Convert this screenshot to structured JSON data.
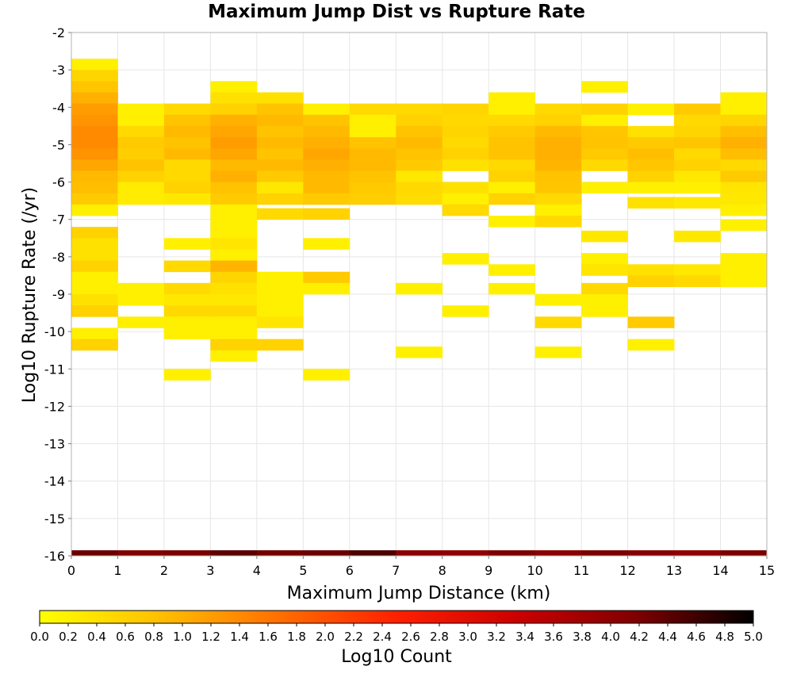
{
  "chart_data": {
    "type": "heatmap",
    "title": "Maximum Jump Dist vs Rupture Rate",
    "xlabel": "Maximum Jump Distance (km)",
    "ylabel": "Log10 Rupture Rate (/yr)",
    "xlim": [
      0,
      15
    ],
    "ylim": [
      -16,
      -2
    ],
    "x_ticks": [
      "0",
      "1",
      "2",
      "3",
      "4",
      "5",
      "6",
      "7",
      "8",
      "9",
      "10",
      "11",
      "12",
      "13",
      "14",
      "15"
    ],
    "y_ticks": [
      "-2",
      "-3",
      "-4",
      "-5",
      "-6",
      "-7",
      "-8",
      "-9",
      "-10",
      "-11",
      "-12",
      "-13",
      "-14",
      "-15",
      "-16"
    ],
    "x_bin_width": 1,
    "y_bin_height": 0.3,
    "grid": true,
    "colorbar": {
      "label": "Log10 Count",
      "range": [
        0,
        5
      ],
      "ticks": [
        "0.0",
        "0.2",
        "0.4",
        "0.6",
        "0.8",
        "1.0",
        "1.2",
        "1.4",
        "1.6",
        "1.8",
        "2.0",
        "2.2",
        "2.4",
        "2.6",
        "2.8",
        "3.0",
        "3.2",
        "3.4",
        "3.6",
        "3.8",
        "4.0",
        "4.2",
        "4.4",
        "4.6",
        "4.8",
        "5.0"
      ],
      "colors": [
        "#ffff00",
        "#ffc000",
        "#ff7000",
        "#ff2000",
        "#cc0000",
        "#800000",
        "#000000"
      ]
    },
    "cells": [
      [
        0.5,
        -2.85,
        0.2
      ],
      [
        0.5,
        -3.15,
        0.55
      ],
      [
        0.5,
        -3.45,
        0.75
      ],
      [
        0.5,
        -3.75,
        1.0
      ],
      [
        0.5,
        -4.05,
        1.2
      ],
      [
        0.5,
        -4.35,
        1.3
      ],
      [
        0.5,
        -4.65,
        1.4
      ],
      [
        0.5,
        -4.95,
        1.4
      ],
      [
        0.5,
        -5.25,
        1.3
      ],
      [
        0.5,
        -5.55,
        1.1
      ],
      [
        0.5,
        -5.85,
        0.9
      ],
      [
        0.5,
        -6.15,
        0.85
      ],
      [
        0.5,
        -6.45,
        0.7
      ],
      [
        0.5,
        -6.75,
        0.2
      ],
      [
        0.5,
        -7.35,
        0.6
      ],
      [
        0.5,
        -7.65,
        0.4
      ],
      [
        0.5,
        -7.95,
        0.4
      ],
      [
        0.5,
        -8.25,
        0.6
      ],
      [
        0.5,
        -8.55,
        0.2
      ],
      [
        0.5,
        -8.85,
        0.2
      ],
      [
        0.5,
        -9.15,
        0.4
      ],
      [
        0.5,
        -9.45,
        0.6
      ],
      [
        0.5,
        -10.05,
        0.2
      ],
      [
        0.5,
        -10.35,
        0.6
      ],
      [
        1.5,
        -4.05,
        0.2
      ],
      [
        1.5,
        -4.35,
        0.2
      ],
      [
        1.5,
        -4.65,
        0.5
      ],
      [
        1.5,
        -4.95,
        0.7
      ],
      [
        1.5,
        -5.25,
        0.65
      ],
      [
        1.5,
        -5.55,
        0.8
      ],
      [
        1.5,
        -5.85,
        0.6
      ],
      [
        1.5,
        -6.15,
        0.25
      ],
      [
        1.5,
        -6.45,
        0.25
      ],
      [
        1.5,
        -8.85,
        0.2
      ],
      [
        1.5,
        -9.15,
        0.2
      ],
      [
        1.5,
        -9.75,
        0.2
      ],
      [
        2.5,
        -4.05,
        0.5
      ],
      [
        2.5,
        -4.35,
        0.8
      ],
      [
        2.5,
        -4.65,
        0.9
      ],
      [
        2.5,
        -4.95,
        0.8
      ],
      [
        2.5,
        -5.25,
        0.9
      ],
      [
        2.5,
        -5.55,
        0.5
      ],
      [
        2.5,
        -5.85,
        0.5
      ],
      [
        2.5,
        -6.15,
        0.6
      ],
      [
        2.5,
        -6.45,
        0.3
      ],
      [
        2.5,
        -7.65,
        0.2
      ],
      [
        2.5,
        -8.25,
        0.5
      ],
      [
        2.5,
        -8.85,
        0.5
      ],
      [
        2.5,
        -9.15,
        0.3
      ],
      [
        2.5,
        -9.45,
        0.5
      ],
      [
        2.5,
        -9.75,
        0.2
      ],
      [
        2.5,
        -10.05,
        0.2
      ],
      [
        2.5,
        -11.15,
        0.2
      ],
      [
        3.5,
        -3.45,
        0.2
      ],
      [
        3.5,
        -3.75,
        0.4
      ],
      [
        3.5,
        -4.05,
        0.6
      ],
      [
        3.5,
        -4.35,
        1.0
      ],
      [
        3.5,
        -4.65,
        1.1
      ],
      [
        3.5,
        -4.95,
        1.2
      ],
      [
        3.5,
        -5.25,
        1.1
      ],
      [
        3.5,
        -5.55,
        0.9
      ],
      [
        3.5,
        -5.85,
        1.0
      ],
      [
        3.5,
        -6.15,
        0.8
      ],
      [
        3.5,
        -6.45,
        0.7
      ],
      [
        3.5,
        -6.75,
        0.2
      ],
      [
        3.5,
        -7.05,
        0.2
      ],
      [
        3.5,
        -7.35,
        0.2
      ],
      [
        3.5,
        -7.65,
        0.35
      ],
      [
        3.5,
        -7.95,
        0.2
      ],
      [
        3.5,
        -8.25,
        0.95
      ],
      [
        3.5,
        -8.55,
        0.55
      ],
      [
        3.5,
        -8.85,
        0.4
      ],
      [
        3.5,
        -9.15,
        0.3
      ],
      [
        3.5,
        -9.45,
        0.5
      ],
      [
        3.5,
        -9.75,
        0.2
      ],
      [
        3.5,
        -10.05,
        0.2
      ],
      [
        3.5,
        -10.35,
        0.6
      ],
      [
        3.5,
        -10.65,
        0.2
      ],
      [
        4.5,
        -3.75,
        0.4
      ],
      [
        4.5,
        -4.05,
        0.8
      ],
      [
        4.5,
        -4.35,
        0.9
      ],
      [
        4.5,
        -4.65,
        0.8
      ],
      [
        4.5,
        -4.95,
        0.9
      ],
      [
        4.5,
        -5.25,
        0.8
      ],
      [
        4.5,
        -5.55,
        0.9
      ],
      [
        4.5,
        -5.85,
        0.7
      ],
      [
        4.5,
        -6.15,
        0.3
      ],
      [
        4.5,
        -6.45,
        0.6
      ],
      [
        4.5,
        -6.85,
        0.5
      ],
      [
        4.5,
        -8.55,
        0.2
      ],
      [
        4.5,
        -8.85,
        0.2
      ],
      [
        4.5,
        -9.15,
        0.2
      ],
      [
        4.5,
        -9.45,
        0.2
      ],
      [
        4.5,
        -9.75,
        0.35
      ],
      [
        4.5,
        -10.35,
        0.6
      ],
      [
        5.5,
        -4.05,
        0.2
      ],
      [
        5.5,
        -4.35,
        0.8
      ],
      [
        5.5,
        -4.65,
        0.9
      ],
      [
        5.5,
        -4.95,
        1.0
      ],
      [
        5.5,
        -5.25,
        1.1
      ],
      [
        5.5,
        -5.55,
        1.0
      ],
      [
        5.5,
        -5.85,
        0.9
      ],
      [
        5.5,
        -6.15,
        0.9
      ],
      [
        5.5,
        -6.45,
        0.7
      ],
      [
        5.5,
        -6.85,
        0.6
      ],
      [
        5.5,
        -7.65,
        0.2
      ],
      [
        5.5,
        -8.55,
        0.7
      ],
      [
        5.5,
        -8.85,
        0.2
      ],
      [
        5.5,
        -11.15,
        0.2
      ],
      [
        6.5,
        -4.05,
        0.5
      ],
      [
        6.5,
        -4.35,
        0.2
      ],
      [
        6.5,
        -4.65,
        0.2
      ],
      [
        6.5,
        -4.95,
        0.8
      ],
      [
        6.5,
        -5.25,
        0.9
      ],
      [
        6.5,
        -5.55,
        0.9
      ],
      [
        6.5,
        -5.85,
        0.8
      ],
      [
        6.5,
        -6.15,
        0.7
      ],
      [
        6.5,
        -6.45,
        0.65
      ],
      [
        7.5,
        -4.05,
        0.5
      ],
      [
        7.5,
        -4.35,
        0.6
      ],
      [
        7.5,
        -4.65,
        0.8
      ],
      [
        7.5,
        -4.95,
        0.9
      ],
      [
        7.5,
        -5.25,
        0.8
      ],
      [
        7.5,
        -5.55,
        0.7
      ],
      [
        7.5,
        -5.85,
        0.3
      ],
      [
        7.5,
        -6.15,
        0.5
      ],
      [
        7.5,
        -6.45,
        0.45
      ],
      [
        7.5,
        -8.85,
        0.2
      ],
      [
        7.5,
        -10.55,
        0.2
      ],
      [
        8.5,
        -4.05,
        0.55
      ],
      [
        8.5,
        -4.35,
        0.5
      ],
      [
        8.5,
        -4.65,
        0.55
      ],
      [
        8.5,
        -4.95,
        0.5
      ],
      [
        8.5,
        -5.25,
        0.6
      ],
      [
        8.5,
        -5.55,
        0.4
      ],
      [
        8.5,
        -6.15,
        0.4
      ],
      [
        8.5,
        -6.45,
        0.2
      ],
      [
        8.5,
        -6.75,
        0.5
      ],
      [
        8.5,
        -8.05,
        0.2
      ],
      [
        8.5,
        -9.45,
        0.2
      ],
      [
        9.5,
        -3.75,
        0.2
      ],
      [
        9.5,
        -4.05,
        0.2
      ],
      [
        9.5,
        -4.35,
        0.5
      ],
      [
        9.5,
        -4.65,
        0.7
      ],
      [
        9.5,
        -4.95,
        0.8
      ],
      [
        9.5,
        -5.25,
        0.8
      ],
      [
        9.5,
        -5.55,
        0.5
      ],
      [
        9.5,
        -5.85,
        0.6
      ],
      [
        9.5,
        -6.15,
        0.2
      ],
      [
        9.5,
        -6.45,
        0.6
      ],
      [
        9.5,
        -7.05,
        0.2
      ],
      [
        9.5,
        -8.35,
        0.2
      ],
      [
        9.5,
        -8.85,
        0.2
      ],
      [
        10.5,
        -4.05,
        0.5
      ],
      [
        10.5,
        -4.35,
        0.6
      ],
      [
        10.5,
        -4.65,
        0.9
      ],
      [
        10.5,
        -4.95,
        1.0
      ],
      [
        10.5,
        -5.25,
        1.0
      ],
      [
        10.5,
        -5.55,
        0.95
      ],
      [
        10.5,
        -5.85,
        0.8
      ],
      [
        10.5,
        -6.15,
        0.75
      ],
      [
        10.5,
        -6.45,
        0.5
      ],
      [
        10.5,
        -6.75,
        0.2
      ],
      [
        10.5,
        -7.05,
        0.5
      ],
      [
        10.5,
        -9.15,
        0.2
      ],
      [
        10.5,
        -9.75,
        0.5
      ],
      [
        10.5,
        -10.55,
        0.2
      ],
      [
        11.5,
        -3.45,
        0.2
      ],
      [
        11.5,
        -4.05,
        0.6
      ],
      [
        11.5,
        -4.35,
        0.2
      ],
      [
        11.5,
        -4.65,
        0.75
      ],
      [
        11.5,
        -4.95,
        0.8
      ],
      [
        11.5,
        -5.25,
        0.7
      ],
      [
        11.5,
        -5.55,
        0.5
      ],
      [
        11.5,
        -6.15,
        0.2
      ],
      [
        11.5,
        -7.45,
        0.3
      ],
      [
        11.5,
        -8.05,
        0.2
      ],
      [
        11.5,
        -8.35,
        0.35
      ],
      [
        11.5,
        -8.85,
        0.5
      ],
      [
        11.5,
        -9.15,
        0.2
      ],
      [
        11.5,
        -9.45,
        0.2
      ],
      [
        12.5,
        -4.05,
        0.2
      ],
      [
        12.5,
        -4.65,
        0.4
      ],
      [
        12.5,
        -4.95,
        0.7
      ],
      [
        12.5,
        -5.25,
        0.85
      ],
      [
        12.5,
        -5.55,
        0.75
      ],
      [
        12.5,
        -5.85,
        0.6
      ],
      [
        12.5,
        -6.15,
        0.2
      ],
      [
        12.5,
        -6.55,
        0.4
      ],
      [
        12.5,
        -8.35,
        0.4
      ],
      [
        12.5,
        -8.65,
        0.6
      ],
      [
        12.5,
        -9.75,
        0.7
      ],
      [
        12.5,
        -10.35,
        0.2
      ],
      [
        13.5,
        -4.05,
        0.7
      ],
      [
        13.5,
        -4.35,
        0.5
      ],
      [
        13.5,
        -4.65,
        0.55
      ],
      [
        13.5,
        -4.95,
        0.75
      ],
      [
        13.5,
        -5.25,
        0.5
      ],
      [
        13.5,
        -5.55,
        0.6
      ],
      [
        13.5,
        -5.85,
        0.3
      ],
      [
        13.5,
        -6.15,
        0.2
      ],
      [
        13.5,
        -6.55,
        0.3
      ],
      [
        13.5,
        -7.45,
        0.3
      ],
      [
        13.5,
        -8.35,
        0.3
      ],
      [
        13.5,
        -8.65,
        0.5
      ],
      [
        14.5,
        -3.75,
        0.2
      ],
      [
        14.5,
        -4.05,
        0.2
      ],
      [
        14.5,
        -4.35,
        0.55
      ],
      [
        14.5,
        -4.65,
        0.85
      ],
      [
        14.5,
        -4.95,
        1.0
      ],
      [
        14.5,
        -5.25,
        0.85
      ],
      [
        14.5,
        -5.55,
        0.5
      ],
      [
        14.5,
        -5.85,
        0.7
      ],
      [
        14.5,
        -6.15,
        0.35
      ],
      [
        14.5,
        -6.45,
        0.3
      ],
      [
        14.5,
        -6.75,
        0.2
      ],
      [
        14.5,
        -7.15,
        0.2
      ],
      [
        14.5,
        -8.05,
        0.2
      ],
      [
        14.5,
        -8.35,
        0.2
      ],
      [
        14.5,
        -8.65,
        0.2
      ]
    ],
    "bottom_row": {
      "y": -16,
      "log10_counts": [
        4.3,
        4.15,
        4.2,
        4.4,
        4.25,
        4.3,
        4.5,
        4.05,
        4.0,
        4.2,
        4.05,
        4.2,
        4.1,
        4.0,
        4.2
      ]
    }
  }
}
